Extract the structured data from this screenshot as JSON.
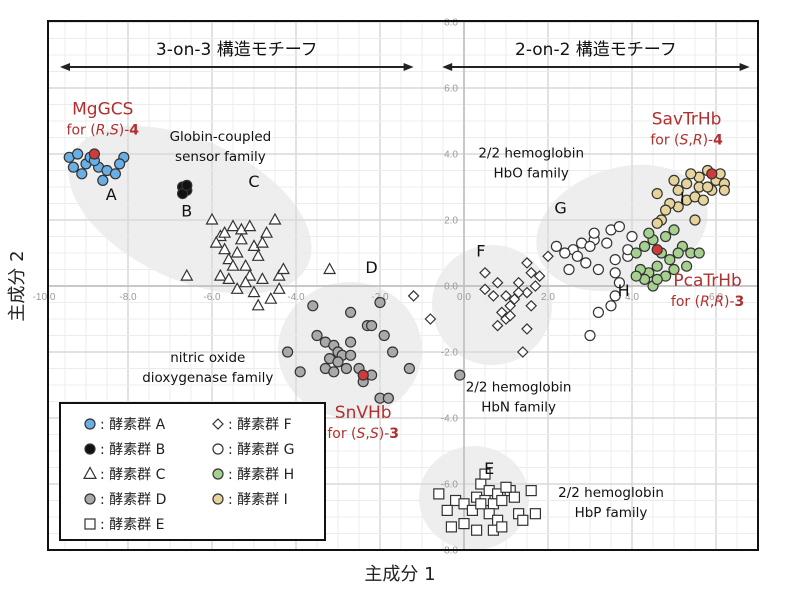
{
  "chart_data": {
    "type": "scatter",
    "xlabel": "主成分 1",
    "ylabel": "主成分 2",
    "xlim": [
      -10,
      7
    ],
    "ylim": [
      -8,
      8
    ],
    "grid": true,
    "x_ticks": [
      "-10.0",
      "-8.0",
      "-6.0",
      "-4.0",
      "-2.0",
      "0.0",
      "2.0",
      "4.0",
      "6.0"
    ],
    "y_ticks": [
      "8.0",
      "6.0",
      "4.0",
      "2.0",
      "0.0",
      "-2.0",
      "-4.0",
      "-6.0",
      "-8.0"
    ],
    "legend_placement": "bottom-left",
    "regions": [
      {
        "label": "3-on-3 構造モチーフ",
        "x_from": -10,
        "x_to": -1.2
      },
      {
        "label": "2-on-2 構造モチーフ",
        "x_from": -0.9,
        "x_to": 6.8
      }
    ],
    "families": [
      {
        "label": "Globin-coupled\nsensor family",
        "lines": [
          "Globin-coupled",
          "sensor family"
        ],
        "x": -5.8,
        "y": 4.4
      },
      {
        "label": "nitric oxide dioxygenase family",
        "lines": [
          "nitric oxide",
          "dioxygenase family"
        ],
        "x": -6.1,
        "y": -2.3
      },
      {
        "label": "2/2 hemoglobin HbO family",
        "lines": [
          "2/2 hemoglobin",
          "HbO family"
        ],
        "x": 1.6,
        "y": 3.9
      },
      {
        "label": "2/2 hemoglobin HbN family",
        "lines": [
          "2/2 hemoglobin",
          "HbN family"
        ],
        "x": 1.3,
        "y": -3.2
      },
      {
        "label": "2/2 hemoglobin HbP family",
        "lines": [
          "2/2 hemoglobin",
          "HbP family"
        ],
        "x": 3.5,
        "y": -6.4
      }
    ],
    "group_labels": [
      {
        "text": "A",
        "x": -8.4,
        "y": 2.6
      },
      {
        "text": "B",
        "x": -6.6,
        "y": 2.1
      },
      {
        "text": "C",
        "x": -5.0,
        "y": 3.0
      },
      {
        "text": "D",
        "x": -2.2,
        "y": 0.4
      },
      {
        "text": "E",
        "x": 0.6,
        "y": -5.7
      },
      {
        "text": "F",
        "x": 0.4,
        "y": 0.9
      },
      {
        "text": "G",
        "x": 2.3,
        "y": 2.2
      },
      {
        "text": "H",
        "x": 3.8,
        "y": -0.3
      },
      {
        "text": "I",
        "x": 5.2,
        "y": 2.5
      }
    ],
    "enzymes": [
      {
        "name": "MgGCS",
        "substrate_pre": "for (",
        "r1": "R",
        "sep": ",",
        "r2": "S",
        "substrate_post": ")-",
        "num": "4",
        "x": -8.6,
        "y": 5.2,
        "point_x": -8.8,
        "point_y": 4.0
      },
      {
        "name": "SavTrHb",
        "substrate_pre": "for (",
        "r1": "S",
        "sep": ",",
        "r2": "R",
        "substrate_post": ")-",
        "num": "4",
        "x": 5.3,
        "y": 4.9,
        "point_x": 5.9,
        "point_y": 3.4
      },
      {
        "name": "PcaTrHb",
        "substrate_pre": "for (",
        "r1": "R",
        "sep": ",",
        "r2": "R",
        "substrate_post": ")-",
        "num": "3",
        "x": 5.8,
        "y": 0.0,
        "point_x": 4.6,
        "point_y": 1.1
      },
      {
        "name": "SnVHb",
        "substrate_pre": "for (",
        "r1": "S",
        "sep": ",",
        "r2": "S",
        "substrate_post": ")-",
        "num": "3",
        "x": -2.4,
        "y": -4.0,
        "point_x": -2.4,
        "point_y": -2.7
      }
    ],
    "series": [
      {
        "name": "酵素群 A",
        "marker": "circle",
        "fill": "#6aaee6",
        "points": [
          [
            -9.4,
            3.9
          ],
          [
            -9.2,
            4.0
          ],
          [
            -9.0,
            3.7
          ],
          [
            -9.3,
            3.6
          ],
          [
            -8.9,
            3.9
          ],
          [
            -8.7,
            3.6
          ],
          [
            -9.1,
            3.4
          ],
          [
            -8.5,
            3.5
          ],
          [
            -8.3,
            3.4
          ],
          [
            -8.1,
            3.9
          ],
          [
            -8.2,
            3.7
          ],
          [
            -8.6,
            3.2
          ],
          [
            -8.8,
            3.8
          ]
        ]
      },
      {
        "name": "酵素群 B",
        "marker": "circle",
        "fill": "#111111",
        "points": [
          [
            -6.7,
            3.0
          ],
          [
            -6.6,
            2.9
          ],
          [
            -6.7,
            2.8
          ],
          [
            -6.6,
            3.05
          ]
        ]
      },
      {
        "name": "酵素群 C",
        "marker": "triangle",
        "fill": "#ffffff",
        "points": [
          [
            -6.0,
            2.0
          ],
          [
            -5.8,
            1.5
          ],
          [
            -5.5,
            1.8
          ],
          [
            -5.7,
            1.1
          ],
          [
            -5.3,
            1.4
          ],
          [
            -5.6,
            0.8
          ],
          [
            -5.4,
            1.0
          ],
          [
            -5.2,
            0.6
          ],
          [
            -5.0,
            1.2
          ],
          [
            -4.9,
            0.9
          ],
          [
            -5.1,
            0.3
          ],
          [
            -4.7,
            1.6
          ],
          [
            -4.5,
            2.0
          ],
          [
            -4.8,
            0.2
          ],
          [
            -5.0,
            -0.2
          ],
          [
            -4.6,
            -0.4
          ],
          [
            -4.4,
            0.3
          ],
          [
            -4.3,
            0.5
          ],
          [
            -5.8,
            0.3
          ],
          [
            -5.5,
            0.6
          ],
          [
            -5.3,
            1.7
          ],
          [
            -5.9,
            1.3
          ],
          [
            -6.6,
            0.3
          ],
          [
            -3.2,
            0.5
          ],
          [
            -4.4,
            -0.1
          ],
          [
            -5.2,
            0.1
          ],
          [
            -5.6,
            0.2
          ],
          [
            -4.9,
            -0.6
          ],
          [
            -5.4,
            -0.1
          ],
          [
            -5.7,
            1.6
          ],
          [
            -4.8,
            1.3
          ],
          [
            -5.1,
            1.8
          ]
        ]
      },
      {
        "name": "酵素群 D",
        "marker": "circle",
        "fill": "#a9a9a9",
        "points": [
          [
            -3.6,
            -0.6
          ],
          [
            -2.7,
            -0.8
          ],
          [
            -2.0,
            -0.5
          ],
          [
            -3.5,
            -1.5
          ],
          [
            -3.3,
            -1.7
          ],
          [
            -3.1,
            -1.8
          ],
          [
            -3.0,
            -2.0
          ],
          [
            -3.2,
            -2.2
          ],
          [
            -2.9,
            -2.1
          ],
          [
            -3.3,
            -2.5
          ],
          [
            -3.1,
            -2.6
          ],
          [
            -2.7,
            -2.1
          ],
          [
            -2.8,
            -2.5
          ],
          [
            -2.5,
            -2.5
          ],
          [
            -2.2,
            -2.7
          ],
          [
            -2.4,
            -2.9
          ],
          [
            -1.9,
            -1.5
          ],
          [
            -2.7,
            -1.7
          ],
          [
            -2.3,
            -1.2
          ],
          [
            -2.2,
            -1.2
          ],
          [
            -3.9,
            -2.6
          ],
          [
            -4.2,
            -2.0
          ],
          [
            -1.7,
            -2.0
          ],
          [
            -1.3,
            -2.5
          ],
          [
            -2.0,
            -3.4
          ],
          [
            -1.8,
            -3.4
          ],
          [
            -0.1,
            -2.7
          ],
          [
            -3.0,
            -2.3
          ]
        ]
      },
      {
        "name": "酵素群 E",
        "marker": "square",
        "fill": "#ffffff",
        "points": [
          [
            0.4,
            -6.0
          ],
          [
            0.6,
            -6.2
          ],
          [
            0.8,
            -6.3
          ],
          [
            1.1,
            -6.2
          ],
          [
            0.3,
            -6.4
          ],
          [
            0.5,
            -6.5
          ],
          [
            0.7,
            -6.6
          ],
          [
            0.9,
            -6.5
          ],
          [
            1.2,
            -6.4
          ],
          [
            -0.2,
            -6.5
          ],
          [
            0.0,
            -6.6
          ],
          [
            0.2,
            -6.8
          ],
          [
            -0.4,
            -6.8
          ],
          [
            0.6,
            -6.9
          ],
          [
            0.8,
            -7.1
          ],
          [
            1.3,
            -6.9
          ],
          [
            -0.3,
            -7.3
          ],
          [
            0.0,
            -7.2
          ],
          [
            0.3,
            -7.4
          ],
          [
            0.7,
            -7.4
          ],
          [
            0.9,
            -7.3
          ],
          [
            1.6,
            -6.2
          ],
          [
            1.7,
            -6.9
          ],
          [
            1.4,
            -7.1
          ],
          [
            0.5,
            -5.7
          ],
          [
            -0.6,
            -6.3
          ],
          [
            0.4,
            -6.6
          ],
          [
            1.0,
            -6.1
          ]
        ]
      },
      {
        "name": "酵素群 F",
        "marker": "diamond",
        "fill": "#ffffff",
        "points": [
          [
            0.5,
            0.4
          ],
          [
            1.5,
            0.7
          ],
          [
            1.6,
            0.4
          ],
          [
            1.3,
            0.1
          ],
          [
            1.5,
            -0.2
          ],
          [
            1.7,
            0.0
          ],
          [
            1.8,
            0.3
          ],
          [
            0.8,
            0.1
          ],
          [
            0.5,
            -0.1
          ],
          [
            0.7,
            -0.3
          ],
          [
            1.0,
            -0.3
          ],
          [
            1.1,
            -0.6
          ],
          [
            1.2,
            -0.4
          ],
          [
            0.9,
            -0.8
          ],
          [
            1.0,
            -1.0
          ],
          [
            0.8,
            -1.2
          ],
          [
            1.6,
            -0.6
          ],
          [
            1.5,
            -1.3
          ],
          [
            1.4,
            -2.0
          ],
          [
            -0.8,
            -1.0
          ],
          [
            -1.2,
            -0.3
          ],
          [
            1.3,
            -0.2
          ],
          [
            1.1,
            -0.9
          ],
          [
            2.0,
            0.9
          ]
        ]
      },
      {
        "name": "酵素群 G",
        "marker": "circle",
        "fill": "#ffffff",
        "points": [
          [
            2.2,
            1.2
          ],
          [
            2.6,
            1.1
          ],
          [
            2.8,
            1.3
          ],
          [
            3.1,
            1.4
          ],
          [
            3.0,
            1.2
          ],
          [
            2.7,
            0.9
          ],
          [
            2.9,
            0.7
          ],
          [
            3.5,
            1.7
          ],
          [
            3.7,
            1.8
          ],
          [
            3.4,
            1.3
          ],
          [
            3.2,
            0.5
          ],
          [
            3.6,
            0.4
          ],
          [
            3.7,
            0.1
          ],
          [
            3.6,
            -0.3
          ],
          [
            3.5,
            -0.6
          ],
          [
            3.2,
            -0.8
          ],
          [
            3.6,
            0.8
          ],
          [
            3.9,
            0.9
          ],
          [
            4.0,
            1.5
          ],
          [
            3.1,
            1.6
          ],
          [
            2.4,
            1.0
          ],
          [
            2.5,
            0.5
          ],
          [
            3.9,
            1.1
          ],
          [
            3.0,
            -1.5
          ]
        ]
      },
      {
        "name": "酵素群 H",
        "marker": "circle",
        "fill": "#a6d08e",
        "points": [
          [
            4.1,
            1.0
          ],
          [
            4.3,
            1.2
          ],
          [
            4.5,
            1.4
          ],
          [
            4.7,
            1.0
          ],
          [
            4.9,
            0.8
          ],
          [
            4.6,
            0.6
          ],
          [
            4.4,
            0.4
          ],
          [
            4.2,
            0.5
          ],
          [
            4.3,
            0.2
          ],
          [
            4.5,
            0.0
          ],
          [
            4.8,
            0.3
          ],
          [
            5.0,
            0.5
          ],
          [
            5.2,
            1.2
          ],
          [
            5.4,
            1.0
          ],
          [
            5.6,
            1.0
          ],
          [
            5.0,
            1.7
          ],
          [
            4.8,
            1.5
          ],
          [
            5.3,
            0.6
          ],
          [
            4.1,
            0.3
          ],
          [
            4.6,
            0.2
          ],
          [
            4.4,
            1.6
          ],
          [
            5.1,
            1.0
          ]
        ]
      },
      {
        "name": "酵素群 I",
        "marker": "circle",
        "fill": "#e6d49a",
        "points": [
          [
            5.6,
            3.3
          ],
          [
            5.8,
            3.5
          ],
          [
            6.0,
            3.2
          ],
          [
            6.2,
            3.1
          ],
          [
            5.9,
            2.9
          ],
          [
            5.6,
            3.0
          ],
          [
            5.3,
            3.1
          ],
          [
            5.1,
            2.9
          ],
          [
            5.0,
            3.2
          ],
          [
            5.3,
            2.6
          ],
          [
            5.1,
            2.4
          ],
          [
            4.9,
            2.5
          ],
          [
            4.8,
            2.3
          ],
          [
            4.7,
            2.0
          ],
          [
            5.5,
            2.7
          ],
          [
            5.8,
            3.0
          ],
          [
            6.1,
            3.4
          ],
          [
            6.2,
            2.9
          ],
          [
            5.4,
            3.4
          ],
          [
            4.6,
            1.9
          ],
          [
            5.5,
            2.0
          ],
          [
            4.6,
            2.8
          ],
          [
            5.7,
            2.6
          ]
        ]
      }
    ],
    "highlight_color": "#d23a3a",
    "enzyme_label_color": "#b03030",
    "cluster_shade": "#eeeeee"
  }
}
